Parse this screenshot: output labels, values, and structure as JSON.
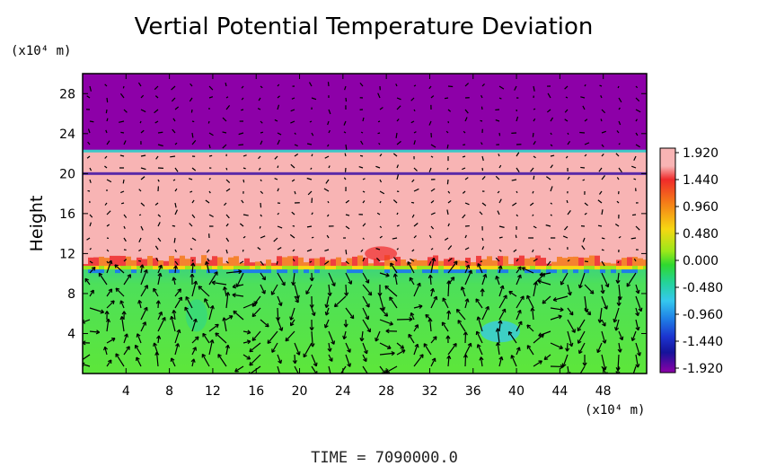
{
  "chart_data": {
    "type": "heatmap",
    "title": "Vertial Potential Temperature Deviation",
    "ylabel": "Height",
    "x_unit_label": "(x10⁴ m)",
    "y_unit_label": "(x10⁴ m)",
    "xlim": [
      0,
      52
    ],
    "ylim": [
      0,
      30
    ],
    "x_ticks": [
      4,
      8,
      12,
      16,
      20,
      24,
      28,
      32,
      36,
      40,
      44,
      48
    ],
    "y_ticks": [
      4,
      8,
      12,
      16,
      20,
      24,
      28
    ],
    "time_label": "TIME  =  7090000.0",
    "colorbar": {
      "min": -1.92,
      "max": 1.92,
      "ticks": [
        "1.920",
        "1.440",
        "0.960",
        "0.480",
        "0.000",
        "-0.480",
        "-0.960",
        "-1.440",
        "-1.920"
      ],
      "colors": [
        "#f8b4b4",
        "#ef2a2a",
        "#f57a18",
        "#f6d712",
        "#9ae81a",
        "#2fd82f",
        "#24d39a",
        "#35c8ee",
        "#1f7fe6",
        "#1c34cf",
        "#15139a",
        "#8d00a8"
      ]
    },
    "layers": [
      {
        "name": "upper",
        "y_range": [
          22.3,
          30
        ],
        "value": -1.92,
        "color": "#8d00a8"
      },
      {
        "name": "middle",
        "y_range": [
          10.5,
          22.3
        ],
        "value": 1.92,
        "color": "#f8b4b4"
      },
      {
        "name": "lower",
        "y_range": [
          0,
          10.5
        ],
        "value": 0.0,
        "color": "#4fe03d"
      }
    ],
    "vectors": "wind field arrows overlaid"
  }
}
